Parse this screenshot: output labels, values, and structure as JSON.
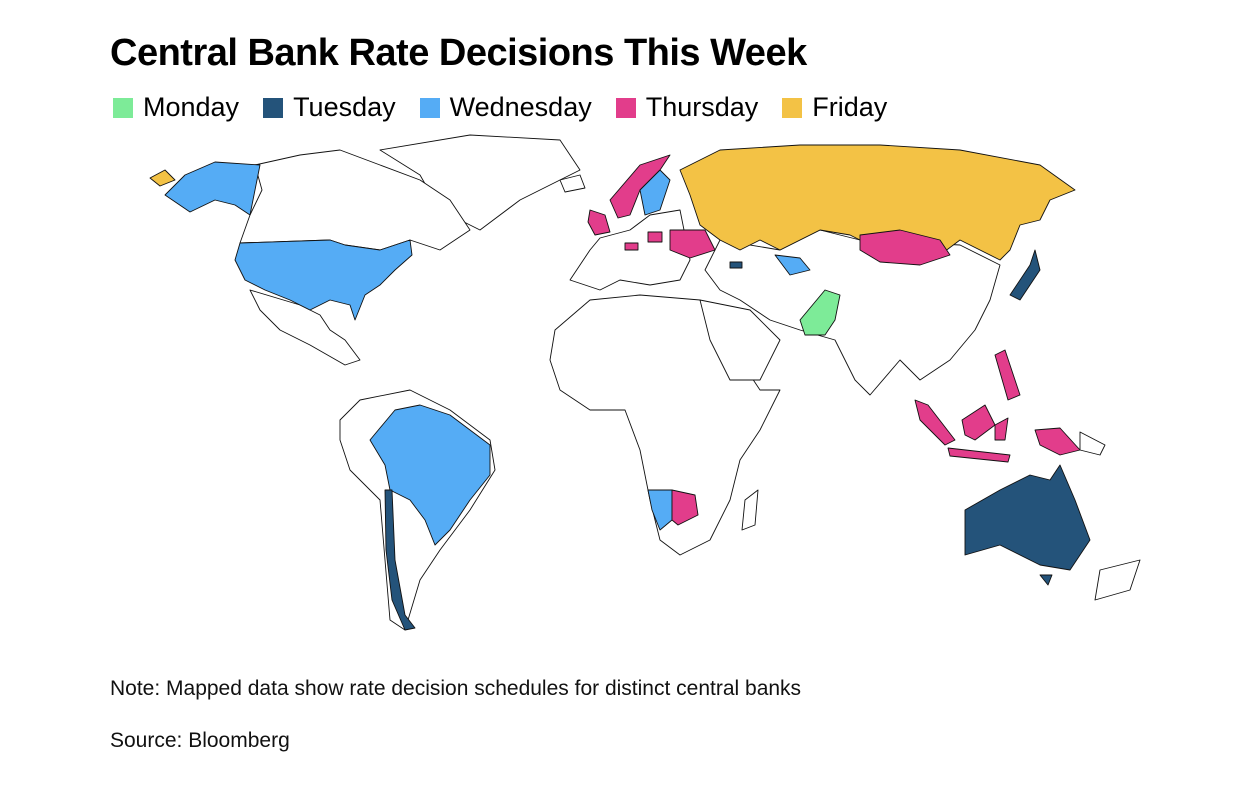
{
  "title": "Central Bank Rate Decisions This Week",
  "legend": [
    {
      "name": "Monday",
      "color": "#7deb98"
    },
    {
      "name": "Tuesday",
      "color": "#24537a"
    },
    {
      "name": "Wednesday",
      "color": "#55acf5"
    },
    {
      "name": "Thursday",
      "color": "#e23d8b"
    },
    {
      "name": "Friday",
      "color": "#f3c245"
    }
  ],
  "note": "Note: Mapped data show rate decision schedules for distinct central banks",
  "source": "Source: Bloomberg"
}
